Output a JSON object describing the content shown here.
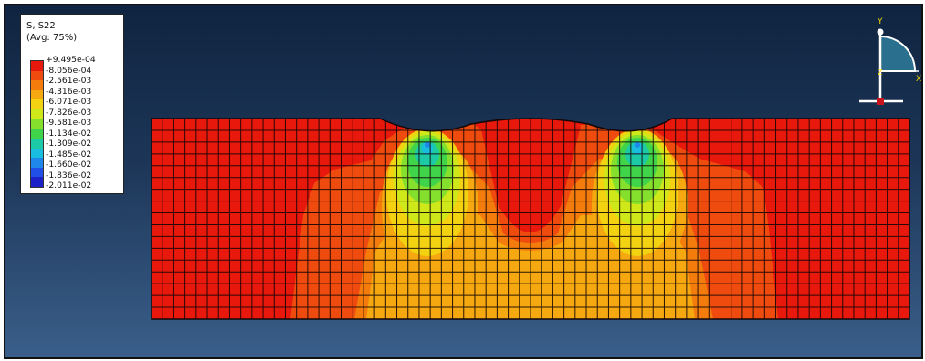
{
  "legend": {
    "title": "S, S22",
    "subtitle": "(Avg: 75%)",
    "labels": [
      "+9.495e-04",
      "-8.056e-04",
      "-2.561e-03",
      "-4.316e-03",
      "-6.071e-03",
      "-7.826e-03",
      "-9.581e-03",
      "-1.134e-02",
      "-1.309e-02",
      "-1.485e-02",
      "-1.660e-02",
      "-1.836e-02",
      "-2.011e-02"
    ],
    "colors": [
      "#e8180c",
      "#ef4b0e",
      "#f37c0c",
      "#f5a80f",
      "#f2d211",
      "#cfe81a",
      "#84e02c",
      "#3fd44a",
      "#1ccaa6",
      "#18bde0",
      "#1f86ea",
      "#1f4fe6",
      "#1c22c8"
    ]
  },
  "triad": {
    "y_label": "Y",
    "x_label": "X",
    "z_label": "Z"
  }
}
